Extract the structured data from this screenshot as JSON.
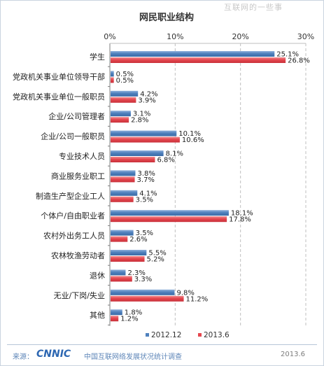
{
  "watermark": "互联网的一些事",
  "footer": {
    "source_label": "来源：",
    "logo_text": "CNNIC",
    "org_name": "中国互联网络发展状况统计调查",
    "date": "2013.6"
  },
  "colors": {
    "series_2012": "#4f81bd",
    "series_2013": "#e5474e",
    "grid": "#bfbfbf",
    "axis": "#7f7f7f"
  },
  "chart_data": {
    "type": "bar",
    "orientation": "horizontal",
    "title": "网民职业结构",
    "xlim": [
      0,
      30
    ],
    "ticks": [
      "0%",
      "10%",
      "20%",
      "30%"
    ],
    "tick_values": [
      0,
      10,
      20,
      30
    ],
    "grid": true,
    "legend_position": "bottom",
    "categories": [
      "学生",
      "党政机关事业单位领导干部",
      "党政机关事业单位一般职员",
      "企业/公司管理者",
      "企业/公司一般职员",
      "专业技术人员",
      "商业服务业职工",
      "制造生产型企业工人",
      "个体户/自由职业者",
      "农村外出务工人员",
      "农林牧渔劳动者",
      "退休",
      "无业/下岗/失业",
      "其他"
    ],
    "series": [
      {
        "name": "2012.12",
        "color": "#4f81bd",
        "values": [
          25.1,
          0.5,
          4.2,
          3.1,
          10.1,
          8.1,
          3.8,
          4.1,
          18.1,
          3.5,
          5.5,
          2.3,
          9.8,
          1.8
        ],
        "labels": [
          "25.1%",
          "0.5%",
          "4.2%",
          "3.1%",
          "10.1%",
          "8.1%",
          "3.8%",
          "4.1%",
          "18.1%",
          "3.5%",
          "5.5%",
          "2.3%",
          "9.8%",
          "1.8%"
        ]
      },
      {
        "name": "2013.6",
        "color": "#e5474e",
        "values": [
          26.8,
          0.5,
          3.9,
          2.8,
          10.6,
          6.8,
          3.7,
          3.5,
          17.8,
          2.6,
          5.2,
          3.3,
          11.2,
          1.2
        ],
        "labels": [
          "26.8%",
          "0.5%",
          "3.9%",
          "2.8%",
          "10.6%",
          "6.8%",
          "3.7%",
          "3.5%",
          "17.8%",
          "2.6%",
          "5.2%",
          "3.3%",
          "11.2%",
          "1.2%"
        ]
      }
    ]
  }
}
